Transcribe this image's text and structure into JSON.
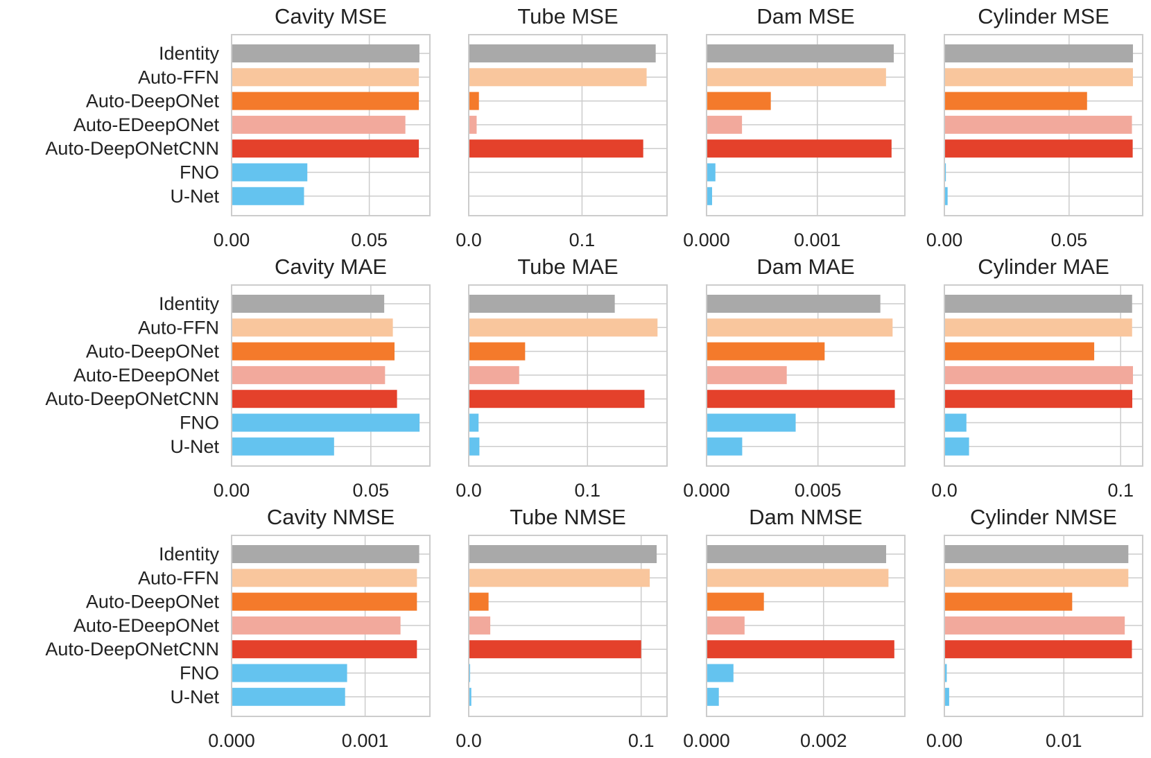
{
  "colors": {
    "Identity": "#a9a9a9",
    "Auto-FFN": "#f9c69d",
    "Auto-DeepONet": "#f47a2b",
    "Auto-EDeepONet": "#f2a99c",
    "Auto-DeepONetCNN": "#e4412b",
    "FNO": "#64c3ef",
    "U-Net": "#64c3ef"
  },
  "chart_data": [
    {
      "type": "bar",
      "orientation": "horizontal",
      "title": "Cavity MSE",
      "categories": [
        "Identity",
        "Auto-FFN",
        "Auto-DeepONet",
        "Auto-EDeepONet",
        "Auto-DeepONetCNN",
        "FNO",
        "U-Net"
      ],
      "values": [
        0.0682,
        0.068,
        0.068,
        0.0631,
        0.068,
        0.0275,
        0.0263
      ],
      "xlim": [
        0,
        0.072
      ],
      "xticks": [
        0,
        0.05
      ],
      "xtick_labels": [
        "0.00",
        "0.05"
      ],
      "grid": true
    },
    {
      "type": "bar",
      "orientation": "horizontal",
      "title": "Tube MSE",
      "categories": [
        "Identity",
        "Auto-FFN",
        "Auto-DeepONet",
        "Auto-EDeepONet",
        "Auto-DeepONetCNN",
        "FNO",
        "U-Net"
      ],
      "values": [
        0.165,
        0.157,
        0.009,
        0.007,
        0.154,
        0,
        0
      ],
      "xlim": [
        0,
        0.175
      ],
      "xticks": [
        0,
        0.1
      ],
      "xtick_labels": [
        "0.0",
        "0.1"
      ],
      "grid": true
    },
    {
      "type": "bar",
      "orientation": "horizontal",
      "title": "Dam MSE",
      "categories": [
        "Identity",
        "Auto-FFN",
        "Auto-DeepONet",
        "Auto-EDeepONet",
        "Auto-DeepONetCNN",
        "FNO",
        "U-Net"
      ],
      "values": [
        0.00169,
        0.00162,
        0.00058,
        0.00032,
        0.00167,
        8e-05,
        5e-05
      ],
      "xlim": [
        0,
        0.00179
      ],
      "xticks": [
        0,
        0.001
      ],
      "xtick_labels": [
        "0.000",
        "0.001"
      ],
      "grid": true
    },
    {
      "type": "bar",
      "orientation": "horizontal",
      "title": "Cylinder MSE",
      "categories": [
        "Identity",
        "Auto-FFN",
        "Auto-DeepONet",
        "Auto-EDeepONet",
        "Auto-DeepONetCNN",
        "FNO",
        "U-Net"
      ],
      "values": [
        0.0756,
        0.0756,
        0.0572,
        0.0752,
        0.0755,
        0.0006,
        0.0013
      ],
      "xlim": [
        0,
        0.0795
      ],
      "xticks": [
        0,
        0.05
      ],
      "xtick_labels": [
        "0.00",
        "0.05"
      ],
      "grid": true
    },
    {
      "type": "bar",
      "orientation": "horizontal",
      "title": "Cavity MAE",
      "categories": [
        "Identity",
        "Auto-FFN",
        "Auto-DeepONet",
        "Auto-EDeepONet",
        "Auto-DeepONetCNN",
        "FNO",
        "U-Net"
      ],
      "values": [
        0.0548,
        0.0579,
        0.0585,
        0.0551,
        0.0594,
        0.0675,
        0.0368
      ],
      "xlim": [
        0,
        0.0712
      ],
      "xticks": [
        0,
        0.05
      ],
      "xtick_labels": [
        "0.00",
        "0.05"
      ],
      "grid": true
    },
    {
      "type": "bar",
      "orientation": "horizontal",
      "title": "Tube MAE",
      "categories": [
        "Identity",
        "Auto-FFN",
        "Auto-DeepONet",
        "Auto-EDeepONet",
        "Auto-DeepONetCNN",
        "FNO",
        "U-Net"
      ],
      "values": [
        0.123,
        0.159,
        0.0475,
        0.0425,
        0.148,
        0.0083,
        0.009
      ],
      "xlim": [
        0,
        0.167
      ],
      "xticks": [
        0,
        0.1
      ],
      "xtick_labels": [
        "0.0",
        "0.1"
      ],
      "grid": true
    },
    {
      "type": "bar",
      "orientation": "horizontal",
      "title": "Dam MAE",
      "categories": [
        "Identity",
        "Auto-FFN",
        "Auto-DeepONet",
        "Auto-EDeepONet",
        "Auto-DeepONetCNN",
        "FNO",
        "U-Net"
      ],
      "values": [
        0.0078,
        0.00835,
        0.0053,
        0.0036,
        0.00845,
        0.004,
        0.0016
      ],
      "xlim": [
        0,
        0.0089
      ],
      "xticks": [
        0,
        0.005
      ],
      "xtick_labels": [
        "0.000",
        "0.005"
      ],
      "grid": true
    },
    {
      "type": "bar",
      "orientation": "horizontal",
      "title": "Cylinder MAE",
      "categories": [
        "Identity",
        "Auto-FFN",
        "Auto-DeepONet",
        "Auto-EDeepONet",
        "Auto-DeepONetCNN",
        "FNO",
        "U-Net"
      ],
      "values": [
        0.1065,
        0.1065,
        0.085,
        0.107,
        0.1066,
        0.0125,
        0.014
      ],
      "xlim": [
        0,
        0.1125
      ],
      "xticks": [
        0,
        0.1
      ],
      "xtick_labels": [
        "0.0",
        "0.1"
      ],
      "grid": true
    },
    {
      "type": "bar",
      "orientation": "horizontal",
      "title": "Cavity NMSE",
      "categories": [
        "Identity",
        "Auto-FFN",
        "Auto-DeepONet",
        "Auto-EDeepONet",
        "Auto-DeepONetCNN",
        "FNO",
        "U-Net"
      ],
      "values": [
        0.001405,
        0.001388,
        0.001388,
        0.001265,
        0.001388,
        0.000865,
        0.00085
      ],
      "xlim": [
        0,
        0.001485
      ],
      "xticks": [
        0,
        0.001
      ],
      "xtick_labels": [
        "0.000",
        "0.001"
      ],
      "grid": true
    },
    {
      "type": "bar",
      "orientation": "horizontal",
      "title": "Tube NMSE",
      "categories": [
        "Identity",
        "Auto-FFN",
        "Auto-DeepONet",
        "Auto-EDeepONet",
        "Auto-DeepONetCNN",
        "FNO",
        "U-Net"
      ],
      "values": [
        0.109,
        0.105,
        0.0115,
        0.0125,
        0.1,
        0.0008,
        0.0015
      ],
      "xlim": [
        0,
        0.115
      ],
      "xticks": [
        0,
        0.1
      ],
      "xtick_labels": [
        "0.0",
        "0.1"
      ],
      "grid": true
    },
    {
      "type": "bar",
      "orientation": "horizontal",
      "title": "Dam NMSE",
      "categories": [
        "Identity",
        "Auto-FFN",
        "Auto-DeepONet",
        "Auto-EDeepONet",
        "Auto-DeepONetCNN",
        "FNO",
        "U-Net"
      ],
      "values": [
        0.00307,
        0.00311,
        0.00098,
        0.00065,
        0.00321,
        0.00046,
        0.00021
      ],
      "xlim": [
        0,
        0.00339
      ],
      "xticks": [
        0,
        0.002
      ],
      "xtick_labels": [
        "0.000",
        "0.002"
      ],
      "grid": true
    },
    {
      "type": "bar",
      "orientation": "horizontal",
      "title": "Cylinder NMSE",
      "categories": [
        "Identity",
        "Auto-FFN",
        "Auto-DeepONet",
        "Auto-EDeepONet",
        "Auto-DeepONetCNN",
        "FNO",
        "U-Net"
      ],
      "values": [
        0.0154,
        0.0154,
        0.0107,
        0.0151,
        0.0157,
        0.0002,
        0.0004
      ],
      "xlim": [
        0,
        0.0166
      ],
      "xticks": [
        0,
        0.01
      ],
      "xtick_labels": [
        "0.00",
        "0.01"
      ],
      "grid": true
    }
  ]
}
